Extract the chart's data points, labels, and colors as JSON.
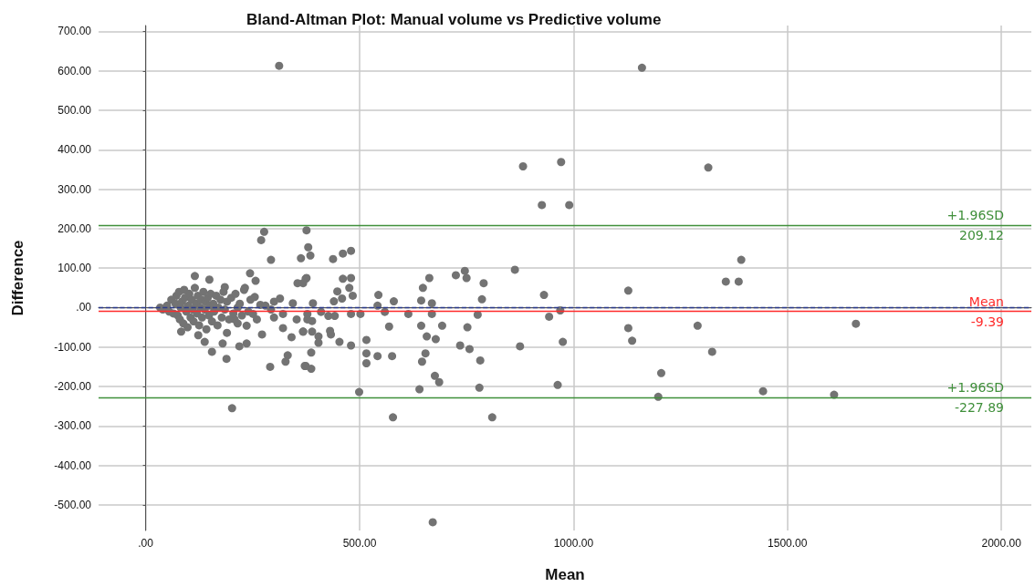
{
  "chart_data": {
    "type": "scatter",
    "title": "Bland-Altman Plot: Manual volume vs Predictive volume",
    "xlabel": "Mean",
    "ylabel": "Difference",
    "xlim": [
      -110,
      2070
    ],
    "ylim": [
      -565,
      715
    ],
    "xticks": [
      {
        "value": 0,
        "label": ".00"
      },
      {
        "value": 500,
        "label": "500.00"
      },
      {
        "value": 1000,
        "label": "1000.00"
      },
      {
        "value": 1500,
        "label": "1500.00"
      },
      {
        "value": 2000,
        "label": "2000.00"
      }
    ],
    "yticks": [
      {
        "value": -500,
        "label": "-500.00"
      },
      {
        "value": -400,
        "label": "-400.00"
      },
      {
        "value": -300,
        "label": "-300.00"
      },
      {
        "value": -200,
        "label": "-200.00"
      },
      {
        "value": -100,
        "label": "-100.00"
      },
      {
        "value": 0,
        "label": ".00"
      },
      {
        "value": 100,
        "label": "100.00"
      },
      {
        "value": 200,
        "label": "200.00"
      },
      {
        "value": 300,
        "label": "300.00"
      },
      {
        "value": 400,
        "label": "400.00"
      },
      {
        "value": 500,
        "label": "500.00"
      },
      {
        "value": 600,
        "label": "600.00"
      },
      {
        "value": 700,
        "label": "700.00"
      }
    ],
    "grid": true,
    "marker": "circle",
    "ref_lines": [
      {
        "axis": "y",
        "value": 0,
        "color": "#2b3a8c",
        "line_style": "dashed"
      },
      {
        "axis": "y",
        "value": -9.39,
        "label": "Mean\n-9.39",
        "color": "#ff2a2a",
        "line_style": "solid"
      },
      {
        "axis": "y",
        "value": 209.12,
        "label": "+1.96SD\n209.12",
        "color": "#3f8f3a",
        "line_style": "solid"
      },
      {
        "axis": "y",
        "value": -227.89,
        "label": "+1.96SD\n-227.89",
        "color": "#3f8f3a",
        "line_style": "solid"
      }
    ],
    "series": [
      {
        "color": "#737373",
        "x": [
          277,
          270,
          293,
          376,
          380,
          363,
          385,
          355,
          376,
          115,
          149,
          185,
          244,
          257,
          232,
          255,
          34,
          83,
          123,
          138,
          155,
          189,
          180,
          190,
          219,
          236,
          272,
          236,
          291,
          202,
          332,
          327,
          374,
          387,
          321,
          341,
          300,
          368,
          353,
          314,
          344,
          321,
          378,
          391,
          268,
          251,
          293,
          215,
          208,
          438,
          461,
          480,
          461,
          480,
          476,
          484,
          448,
          459,
          440,
          374,
          368,
          410,
          427,
          442,
          480,
          502,
          378,
          389,
          368,
          389,
          404,
          404,
          431,
          433,
          453,
          480,
          372,
          387,
          499,
          516,
          516,
          516,
          542,
          576,
          569,
          544,
          542,
          559,
          580,
          614,
          578,
          644,
          648,
          663,
          669,
          669,
          644,
          657,
          678,
          654,
          646,
          676,
          686,
          640,
          693,
          725,
          746,
          750,
          790,
          786,
          776,
          752,
          735,
          757,
          782,
          780,
          810,
          863,
          875,
          882,
          971,
          926,
          990,
          931,
          943,
          969,
          975,
          963,
          1128,
          1128,
          1137,
          1205,
          1198,
          1315,
          1290,
          1324,
          1356,
          1386,
          1392,
          1443,
          1660,
          1609,
          312,
          1160,
          671,
          40,
          50,
          55,
          60,
          65,
          70,
          72,
          75,
          78,
          80,
          82,
          85,
          88,
          90,
          92,
          95,
          98,
          100,
          102,
          105,
          108,
          110,
          112,
          115,
          118,
          120,
          122,
          125,
          128,
          130,
          132,
          135,
          138,
          140,
          142,
          145,
          148,
          150,
          152,
          155,
          158,
          160,
          165,
          168,
          170,
          175,
          178,
          182,
          185,
          190,
          195,
          200,
          205,
          210,
          215,
          220,
          225,
          230,
          240,
          245,
          260,
          280,
          300
        ],
        "values": [
          192,
          171,
          121,
          196,
          153,
          125,
          132,
          62,
          75,
          80,
          71,
          52,
          87,
          68,
          50,
          27,
          0,
          -61,
          -70,
          -87,
          -112,
          -130,
          -91,
          -64,
          -98,
          -91,
          -68,
          -46,
          -150,
          -255,
          -121,
          -137,
          -148,
          -114,
          -52,
          -75,
          -25,
          -61,
          -30,
          23,
          11,
          -16,
          -16,
          11,
          7,
          -16,
          -5,
          0,
          -30,
          123,
          137,
          144,
          73,
          75,
          50,
          30,
          41,
          23,
          16,
          73,
          62,
          -11,
          -21,
          -21,
          -16,
          -16,
          -30,
          -34,
          -61,
          -61,
          -73,
          -89,
          -59,
          -68,
          -87,
          -96,
          -148,
          -155,
          -214,
          -82,
          -116,
          -141,
          -123,
          -123,
          -48,
          32,
          5,
          -11,
          16,
          -16,
          -278,
          18,
          50,
          75,
          11,
          -16,
          -46,
          -73,
          -80,
          -116,
          -137,
          -173,
          -189,
          -207,
          -46,
          82,
          93,
          75,
          62,
          21,
          -18,
          -50,
          -96,
          -105,
          -134,
          -203,
          -278,
          96,
          -98,
          358,
          369,
          260,
          260,
          32,
          -23,
          -7,
          -87,
          -196,
          43,
          -52,
          -84,
          -166,
          -226,
          355,
          -46,
          -112,
          66,
          66,
          121,
          -212,
          -41,
          -221,
          613,
          608,
          -544,
          -5,
          5,
          -10,
          20,
          -15,
          10,
          30,
          -20,
          40,
          -30,
          0,
          15,
          -40,
          45,
          25,
          -10,
          -50,
          5,
          35,
          -25,
          20,
          -5,
          -35,
          50,
          10,
          -15,
          30,
          -45,
          0,
          20,
          -25,
          40,
          -5,
          15,
          -55,
          25,
          -20,
          5,
          35,
          -35,
          10,
          -10,
          30,
          -45,
          0,
          20,
          -25,
          40,
          -5,
          15,
          -30,
          25,
          -15,
          35,
          -40,
          10,
          -20,
          45,
          -10,
          20,
          -30,
          5,
          15
        ]
      }
    ]
  }
}
